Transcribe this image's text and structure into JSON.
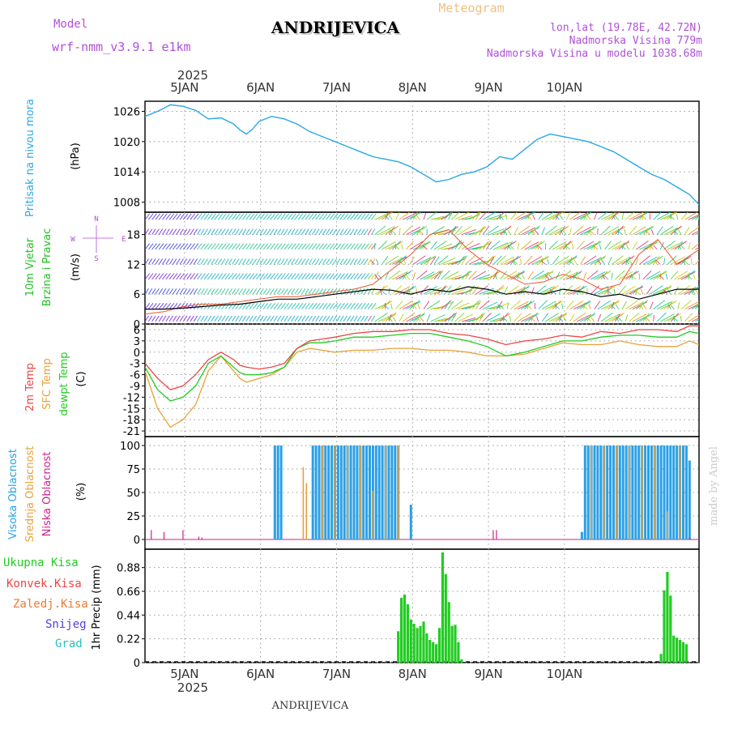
{
  "header": {
    "model_label": "Model",
    "model_name": "wrf-nmm_v3.9.1 e1km",
    "station": "ANDRIJEVICA",
    "meteogram": "Meteogram",
    "lonlat": "lon,lat (19.78E, 42.72N)",
    "altitude": "Nadmorska Visina 779m",
    "model_altitude": "Nadmorska Visina u modelu 1038.68m",
    "footer_station": "ANDRIJEVICA",
    "watermark": "made by Angel"
  },
  "colors": {
    "pressure": "#2aa7e6",
    "wind_label": "#22c022",
    "temp2m": "#ee4444",
    "sfc": "#e8a23a",
    "dewpt": "#22cc22",
    "high_cloud": "#2aa0e6",
    "mid_cloud": "#e8a23a",
    "low_cloud": "#cc2288",
    "precip": "#22cc22",
    "purple": "#b050d8"
  },
  "time_axis": {
    "year": "2025",
    "days": [
      "5JAN",
      "6JAN",
      "7JAN",
      "8JAN",
      "9JAN",
      "10JAN"
    ]
  },
  "chart_data": [
    {
      "type": "line",
      "title": "Pritisak na nivou mora",
      "ylabel": "(hPa)",
      "yticks": [
        "1008",
        "1014",
        "1020",
        "1026"
      ],
      "ylim": [
        1006,
        1028
      ],
      "x_hours": [
        0,
        4,
        8,
        12,
        16,
        20,
        24,
        28,
        30,
        32,
        34,
        36,
        40,
        44,
        48,
        52,
        56,
        60,
        64,
        68,
        72,
        76,
        80,
        84,
        88,
        92,
        96,
        100,
        104,
        108,
        112,
        116,
        120,
        124,
        128,
        132,
        136,
        140,
        144,
        148,
        152,
        156,
        160,
        164,
        168,
        172,
        175
      ],
      "series": [
        {
          "values": [
            1025,
            1026,
            1027.3,
            1027,
            1026.2,
            1024.5,
            1024.7,
            1023.5,
            1022.3,
            1021.5,
            1022.5,
            1024,
            1025,
            1024.5,
            1023.5,
            1022,
            1021,
            1020,
            1019,
            1018,
            1017,
            1016.5,
            1016,
            1015,
            1013.5,
            1012,
            1012.5,
            1013.5,
            1014,
            1015,
            1017,
            1016.5,
            1018.5,
            1020.5,
            1021.5,
            1021,
            1020.5,
            1020,
            1019,
            1018,
            1016.5,
            1015,
            1013.5,
            1012.5,
            1011,
            1009.5,
            1007.5
          ]
        }
      ]
    },
    {
      "type": "line",
      "title": "10m Vjetar Brzina i Pravac",
      "ylabel": "(m/s)",
      "yticks": [
        "0",
        "6",
        "12",
        "18"
      ],
      "ylim": [
        0,
        22.5
      ],
      "direction_legend": [
        "N",
        "W",
        "E",
        "S"
      ],
      "x_hours": [
        0,
        6,
        12,
        18,
        24,
        30,
        36,
        42,
        48,
        54,
        60,
        66,
        72,
        78,
        84,
        90,
        96,
        102,
        108,
        114,
        120,
        126,
        132,
        138,
        144,
        150,
        156,
        162,
        168,
        175
      ],
      "series": [
        {
          "name": "speed",
          "values": [
            3,
            3,
            3.2,
            3.5,
            3.8,
            4,
            4.5,
            5,
            5,
            5.5,
            6,
            6.5,
            7,
            6.8,
            6,
            7,
            6.5,
            7.5,
            7,
            6,
            6.5,
            6,
            7,
            6.5,
            5.5,
            6,
            5,
            6,
            7,
            7
          ]
        },
        {
          "name": "gusts",
          "values": [
            2,
            2.5,
            3.5,
            4,
            4,
            4.5,
            5,
            5.5,
            5.5,
            6,
            6.5,
            7,
            8,
            11,
            14,
            18,
            19,
            15,
            12,
            10,
            8,
            8.5,
            10,
            9,
            7,
            8,
            14,
            17,
            12,
            15
          ]
        }
      ]
    },
    {
      "type": "line",
      "ylabel": "(C)",
      "yticks": [
        "-21",
        "-18",
        "-15",
        "-12",
        "-9",
        "-6",
        "-3",
        "0",
        "3",
        "6"
      ],
      "ylim": [
        -22.5,
        7.5
      ],
      "x_hours": [
        0,
        4,
        8,
        12,
        16,
        20,
        24,
        28,
        30,
        32,
        36,
        40,
        44,
        48,
        52,
        56,
        60,
        66,
        72,
        78,
        84,
        90,
        96,
        102,
        108,
        114,
        120,
        126,
        132,
        138,
        144,
        150,
        156,
        162,
        168,
        172,
        175
      ],
      "series": [
        {
          "name": "2m Temp",
          "values": [
            -3,
            -7,
            -10,
            -9,
            -6,
            -2,
            0,
            -2,
            -3.5,
            -4,
            -4.5,
            -4,
            -3,
            1,
            3,
            3.5,
            4,
            5,
            5.5,
            5.5,
            6,
            6,
            5,
            4.5,
            3.5,
            2,
            3,
            3.5,
            4.5,
            4,
            5.5,
            5,
            6,
            6,
            5.5,
            7,
            7
          ]
        },
        {
          "name": "SFC Temp",
          "values": [
            -5,
            -15,
            -20,
            -18,
            -14,
            -5,
            -1,
            -5,
            -7,
            -8,
            -7,
            -6,
            -4,
            0,
            1,
            0.5,
            0,
            0.5,
            0.5,
            1,
            1,
            0.5,
            0.5,
            0,
            -1,
            -1,
            -0.5,
            1,
            2.5,
            2,
            2,
            3,
            2,
            1.5,
            1.5,
            3,
            2
          ]
        },
        {
          "name": "dewpt Temp",
          "values": [
            -4,
            -10,
            -13,
            -12,
            -9,
            -3,
            -1,
            -4,
            -5.5,
            -6,
            -6,
            -5.5,
            -4,
            1,
            2.5,
            2.5,
            3,
            4,
            4,
            4.5,
            5,
            5,
            4,
            3,
            1.5,
            -1,
            0,
            1.5,
            3,
            3,
            4,
            4.5,
            4.5,
            4,
            4,
            5.5,
            5
          ]
        }
      ]
    },
    {
      "type": "bar",
      "ylabel": "(%)",
      "yticks": [
        "0",
        "25",
        "50",
        "75",
        "100"
      ],
      "ylim": [
        0,
        100
      ],
      "high_cloud": [
        [
          41,
          100
        ],
        [
          42,
          100
        ],
        [
          43,
          100
        ],
        [
          53,
          100
        ],
        [
          54,
          100
        ],
        [
          55,
          100
        ],
        [
          56,
          100
        ],
        [
          57,
          100
        ],
        [
          58,
          100
        ],
        [
          59,
          100
        ],
        [
          60,
          100
        ],
        [
          61,
          100
        ],
        [
          62,
          100
        ],
        [
          63,
          100
        ],
        [
          64,
          100
        ],
        [
          65,
          100
        ],
        [
          66,
          100
        ],
        [
          67,
          100
        ],
        [
          68,
          100
        ],
        [
          69,
          100
        ],
        [
          70,
          100
        ],
        [
          71,
          100
        ],
        [
          72,
          100
        ],
        [
          73,
          100
        ],
        [
          74,
          100
        ],
        [
          75,
          100
        ],
        [
          76,
          100
        ],
        [
          77,
          100
        ],
        [
          78,
          100
        ],
        [
          79,
          100
        ],
        [
          80,
          100
        ],
        [
          84,
          37
        ],
        [
          138,
          8
        ],
        [
          139,
          100
        ],
        [
          140,
          100
        ],
        [
          141,
          100
        ],
        [
          142,
          100
        ],
        [
          143,
          100
        ],
        [
          144,
          100
        ],
        [
          145,
          100
        ],
        [
          146,
          100
        ],
        [
          147,
          100
        ],
        [
          148,
          100
        ],
        [
          149,
          100
        ],
        [
          150,
          100
        ],
        [
          151,
          100
        ],
        [
          152,
          100
        ],
        [
          153,
          100
        ],
        [
          154,
          100
        ],
        [
          155,
          100
        ],
        [
          156,
          100
        ],
        [
          157,
          100
        ],
        [
          158,
          100
        ],
        [
          159,
          100
        ],
        [
          160,
          100
        ],
        [
          161,
          100
        ],
        [
          162,
          100
        ],
        [
          163,
          100
        ],
        [
          164,
          100
        ],
        [
          165,
          100
        ],
        [
          166,
          100
        ],
        [
          167,
          100
        ],
        [
          168,
          100
        ],
        [
          169,
          100
        ],
        [
          170,
          100
        ],
        [
          171,
          100
        ],
        [
          172,
          84
        ]
      ],
      "mid_cloud": [
        [
          50,
          77
        ],
        [
          51,
          60
        ],
        [
          56,
          100
        ],
        [
          60,
          100
        ],
        [
          64,
          100
        ],
        [
          68,
          100
        ],
        [
          72,
          52
        ],
        [
          76,
          100
        ],
        [
          80,
          100
        ],
        [
          141,
          100
        ],
        [
          145,
          100
        ],
        [
          149,
          100
        ],
        [
          153,
          100
        ],
        [
          157,
          100
        ],
        [
          161,
          100
        ],
        [
          165,
          30
        ],
        [
          169,
          100
        ]
      ],
      "low_cloud": [
        [
          2,
          10
        ],
        [
          6,
          8
        ],
        [
          12,
          10
        ],
        [
          17,
          3
        ],
        [
          18,
          2
        ],
        [
          110,
          10
        ],
        [
          111,
          10
        ],
        [
          172,
          2
        ]
      ]
    },
    {
      "type": "bar",
      "ylabel": "1hr Precip (mm)",
      "yticks": [
        "0",
        "0.22",
        "0.44",
        "0.66",
        "0.88"
      ],
      "ylim": [
        0,
        1.05
      ],
      "legend": [
        "Ukupna Kisa",
        "Konvek.Kisa",
        "Zaledj.Kisa",
        "Snijeg",
        "Grad"
      ],
      "precip": [
        [
          80,
          0.29
        ],
        [
          81,
          0.6
        ],
        [
          82,
          0.63
        ],
        [
          83,
          0.54
        ],
        [
          84,
          0.4
        ],
        [
          85,
          0.36
        ],
        [
          86,
          0.32
        ],
        [
          87,
          0.34
        ],
        [
          88,
          0.38
        ],
        [
          89,
          0.27
        ],
        [
          90,
          0.21
        ],
        [
          91,
          0.19
        ],
        [
          92,
          0.17
        ],
        [
          93,
          0.32
        ],
        [
          94,
          1.02
        ],
        [
          95,
          0.82
        ],
        [
          96,
          0.56
        ],
        [
          97,
          0.34
        ],
        [
          98,
          0.35
        ],
        [
          99,
          0.19
        ],
        [
          100,
          0.03
        ],
        [
          163,
          0.08
        ],
        [
          164,
          0.67
        ],
        [
          165,
          0.84
        ],
        [
          166,
          0.62
        ],
        [
          167,
          0.25
        ],
        [
          168,
          0.23
        ],
        [
          169,
          0.21
        ],
        [
          170,
          0.19
        ],
        [
          171,
          0.17
        ]
      ]
    }
  ]
}
